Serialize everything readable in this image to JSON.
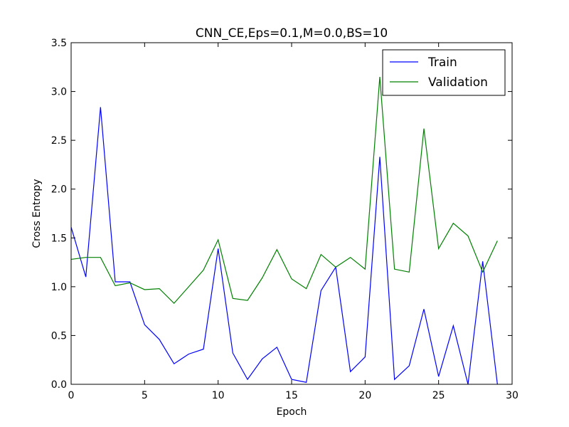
{
  "chart_data": {
    "type": "line",
    "title": "CNN_CE,Eps=0.1,M=0.0,BS=10",
    "xlabel": "Epoch",
    "ylabel": "Cross Entropy",
    "xlim": [
      0,
      30
    ],
    "ylim": [
      0,
      3.5
    ],
    "xticks": [
      "0",
      "5",
      "10",
      "15",
      "20",
      "25",
      "30"
    ],
    "yticks": [
      "0.0",
      "0.5",
      "1.0",
      "1.5",
      "2.0",
      "2.5",
      "3.0",
      "3.5"
    ],
    "grid": false,
    "legend_position": "top-right",
    "x": [
      0,
      1,
      2,
      3,
      4,
      5,
      6,
      7,
      8,
      9,
      10,
      11,
      12,
      13,
      14,
      15,
      16,
      17,
      18,
      19,
      20,
      21,
      22,
      23,
      24,
      25,
      26,
      27,
      28,
      29
    ],
    "series": [
      {
        "name": "Train",
        "color": "#0000ff",
        "values": [
          1.61,
          1.1,
          2.84,
          1.05,
          1.05,
          0.61,
          0.46,
          0.21,
          0.31,
          0.36,
          1.39,
          0.32,
          0.05,
          0.26,
          0.38,
          0.05,
          0.02,
          0.96,
          1.2,
          0.13,
          0.28,
          2.33,
          0.05,
          0.19,
          0.77,
          0.08,
          0.6,
          0.0,
          1.26,
          0.0
        ]
      },
      {
        "name": "Validation",
        "color": "#008000",
        "values": [
          1.28,
          1.3,
          1.3,
          1.01,
          1.04,
          0.97,
          0.98,
          0.83,
          1.0,
          1.17,
          1.48,
          0.88,
          0.86,
          1.09,
          1.38,
          1.08,
          0.98,
          1.33,
          1.2,
          1.3,
          1.18,
          3.15,
          1.18,
          1.15,
          2.62,
          1.39,
          1.65,
          1.52,
          1.15,
          1.47
        ]
      }
    ]
  }
}
